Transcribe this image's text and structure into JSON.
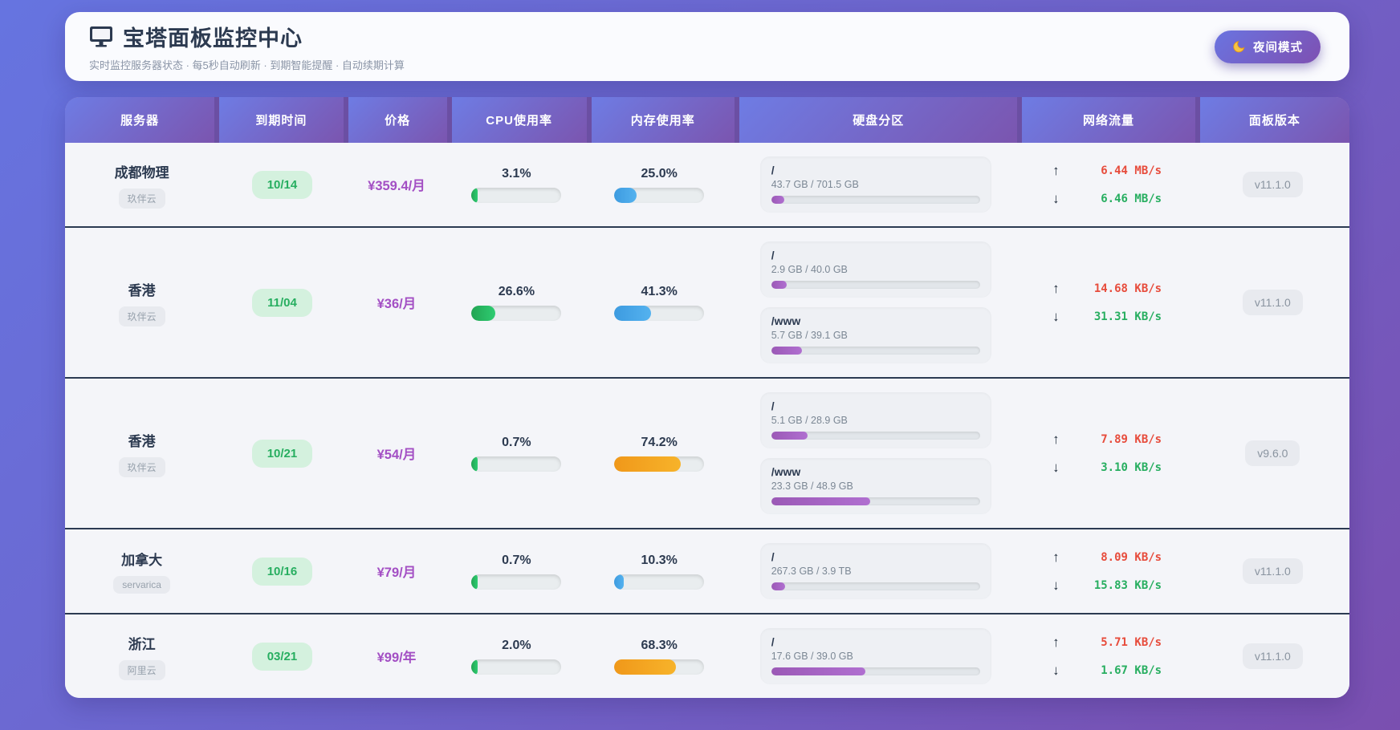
{
  "header": {
    "title": "宝塔面板监控中心",
    "subtitle": "实时监控服务器状态 · 每5秒自动刷新 · 到期智能提醒 · 自动续期计算",
    "night_mode_label": "夜间模式"
  },
  "icons": {
    "title_icon": "monitor-icon",
    "night_icon": "moon-icon",
    "up_arrow": "↑",
    "down_arrow": "↓"
  },
  "colors": {
    "background_gradient": [
      "#6674e0",
      "#7a4fb0"
    ],
    "header_cell_gradient": [
      "#6e7ce4",
      "#7b55af"
    ],
    "row_separator": "#2b3a52",
    "cpu_fill": "#27ae60",
    "memory_fill": "#3d9be0",
    "high_usage_fill": "#f39c12",
    "disk_fill": "#9b59b6",
    "expiry_badge_bg": "#d4f1de",
    "expiry_badge_text": "#27ae60",
    "price_text": "#a34fc4",
    "net_up": "#e74c3c",
    "net_down": "#27ae60"
  },
  "table": {
    "columns": [
      "服务器",
      "到期时间",
      "价格",
      "CPU使用率",
      "内存使用率",
      "硬盘分区",
      "网络流量",
      "面板版本"
    ],
    "rows": [
      {
        "name": "成都物理",
        "provider": "玖伴云",
        "expiry": "10/14",
        "price": "¥359.4/月",
        "cpu": {
          "text": "3.1%",
          "percent": 3.1,
          "level": "green"
        },
        "memory": {
          "text": "25.0%",
          "percent": 25.0,
          "level": "blue"
        },
        "disks": [
          {
            "mount": "/",
            "usage": "43.7 GB / 701.5 GB",
            "percent": 6.2
          }
        ],
        "net_up": "6.44 MB/s",
        "net_down": "6.46 MB/s",
        "version": "v11.1.0"
      },
      {
        "name": "香港",
        "provider": "玖伴云",
        "expiry": "11/04",
        "price": "¥36/月",
        "cpu": {
          "text": "26.6%",
          "percent": 26.6,
          "level": "green"
        },
        "memory": {
          "text": "41.3%",
          "percent": 41.3,
          "level": "blue"
        },
        "disks": [
          {
            "mount": "/",
            "usage": "2.9 GB / 40.0 GB",
            "percent": 7.3
          },
          {
            "mount": "/www",
            "usage": "5.7 GB / 39.1 GB",
            "percent": 14.6
          }
        ],
        "net_up": "14.68 KB/s",
        "net_down": "31.31 KB/s",
        "version": "v11.1.0"
      },
      {
        "name": "香港",
        "provider": "玖伴云",
        "expiry": "10/21",
        "price": "¥54/月",
        "cpu": {
          "text": "0.7%",
          "percent": 0.7,
          "level": "green"
        },
        "memory": {
          "text": "74.2%",
          "percent": 74.2,
          "level": "orange"
        },
        "disks": [
          {
            "mount": "/",
            "usage": "5.1 GB / 28.9 GB",
            "percent": 17.6
          },
          {
            "mount": "/www",
            "usage": "23.3 GB / 48.9 GB",
            "percent": 47.6
          }
        ],
        "net_up": "7.89 KB/s",
        "net_down": "3.10 KB/s",
        "version": "v9.6.0"
      },
      {
        "name": "加拿大",
        "provider": "servarica",
        "expiry": "10/16",
        "price": "¥79/月",
        "cpu": {
          "text": "0.7%",
          "percent": 0.7,
          "level": "green"
        },
        "memory": {
          "text": "10.3%",
          "percent": 10.3,
          "level": "blue"
        },
        "disks": [
          {
            "mount": "/",
            "usage": "267.3 GB / 3.9 TB",
            "percent": 6.7
          }
        ],
        "net_up": "8.09 KB/s",
        "net_down": "15.83 KB/s",
        "version": "v11.1.0"
      },
      {
        "name": "浙江",
        "provider": "阿里云",
        "expiry": "03/21",
        "price": "¥99/年",
        "cpu": {
          "text": "2.0%",
          "percent": 2.0,
          "level": "green"
        },
        "memory": {
          "text": "68.3%",
          "percent": 68.3,
          "level": "orange"
        },
        "disks": [
          {
            "mount": "/",
            "usage": "17.6 GB / 39.0 GB",
            "percent": 45.1
          }
        ],
        "net_up": "5.71 KB/s",
        "net_down": "1.67 KB/s",
        "version": "v11.1.0"
      }
    ]
  }
}
